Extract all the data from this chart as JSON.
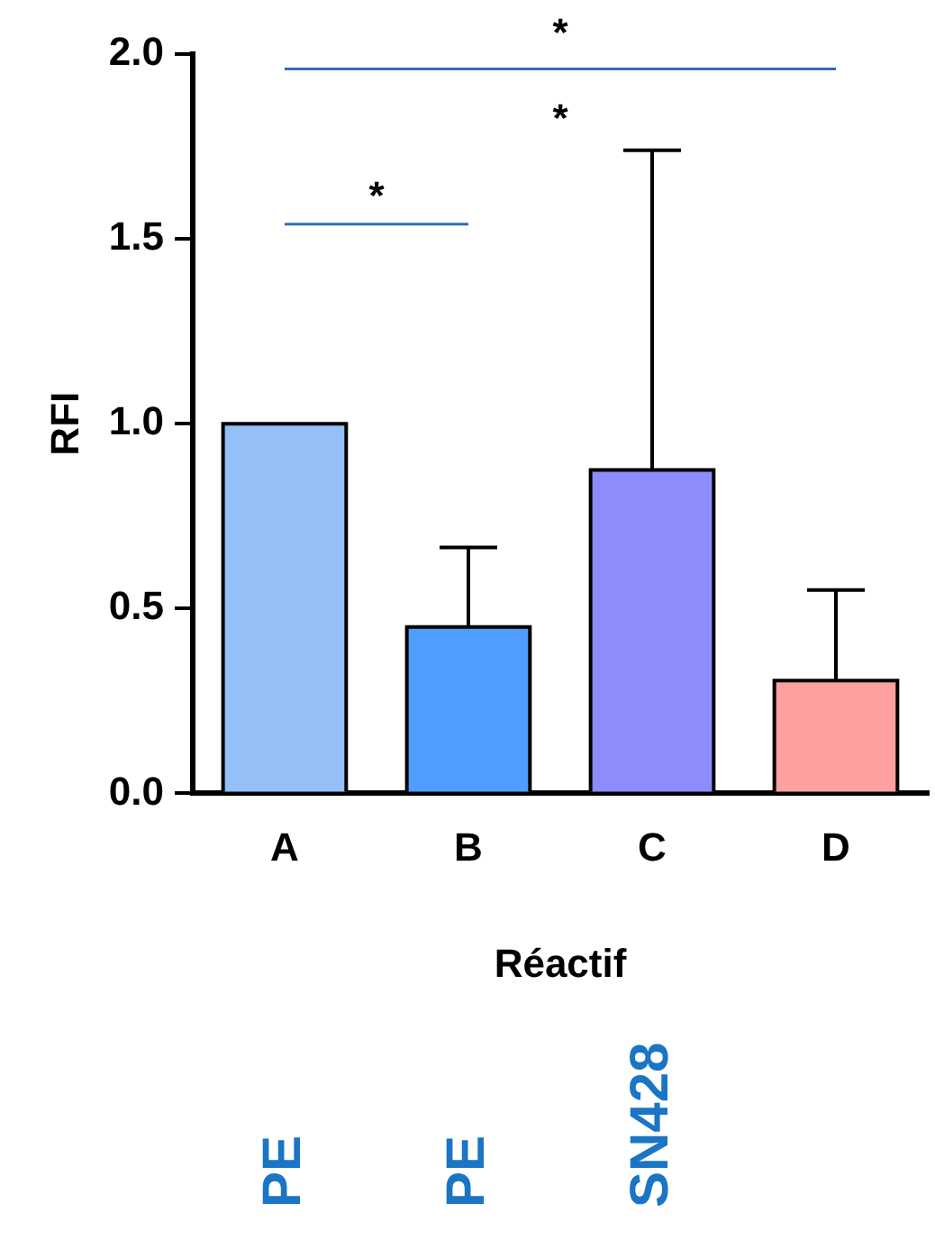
{
  "chart_data": {
    "type": "bar",
    "xlabel": "Réactif",
    "ylabel": "RFI",
    "categories": [
      "A",
      "B",
      "C",
      "D"
    ],
    "values": [
      1.0,
      0.45,
      0.875,
      0.305
    ],
    "colors": [
      "#94c0f7",
      "#4f9dfc",
      "#8c8cfd",
      "#fca0a0"
    ],
    "errors": [
      null,
      [
        0.45,
        0.665
      ],
      [
        0.875,
        1.74
      ],
      [
        0.305,
        0.55
      ]
    ],
    "ylim": [
      0,
      2
    ],
    "yticks": [
      {
        "value": 0,
        "label": "0.0"
      },
      {
        "value": 0.5,
        "label": "0.5"
      },
      {
        "value": 1,
        "label": "1.0"
      },
      {
        "value": 1.5,
        "label": "1.5"
      },
      {
        "value": 2,
        "label": "2.0"
      }
    ],
    "grid": false,
    "ref_lines": [
      {
        "axis": "y",
        "value": 1.54,
        "color": "#2f6db5"
      },
      {
        "axis": "y",
        "value": 1.96,
        "color": "#2f6db5"
      }
    ],
    "annotations": [
      "*",
      "*",
      "*",
      "PE",
      "PE",
      "SN428"
    ]
  }
}
